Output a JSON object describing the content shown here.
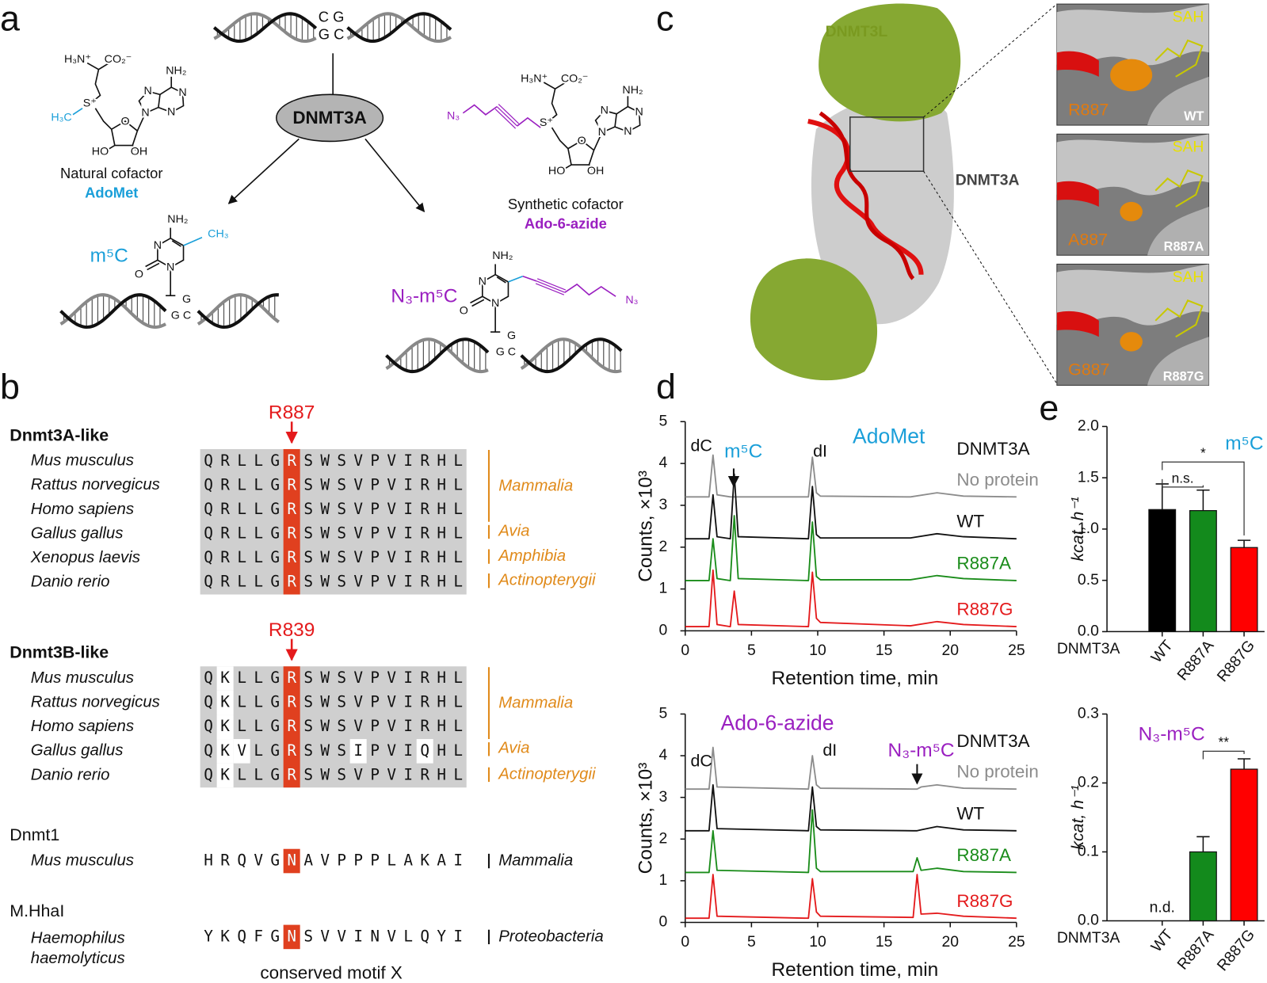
{
  "panel_labels": [
    "a",
    "b",
    "c",
    "d",
    "e"
  ],
  "panel_a": {
    "dna_top": [
      "C G",
      "G C"
    ],
    "enzyme": "DNMT3A",
    "natural": {
      "caption": "Natural cofactor",
      "name": "AdoMet"
    },
    "synthetic": {
      "caption": "Synthetic cofactor",
      "name": "Ado-6-azide"
    },
    "products": [
      "m⁵C",
      "N₃-m⁵C"
    ],
    "atoms": [
      "H₃N⁺",
      "CO₂⁻",
      "NH₂",
      "N",
      "S⁺",
      "H₃C",
      "O",
      "HO",
      "OH",
      "N₃",
      "CH₃",
      "G",
      "G C"
    ]
  },
  "panel_b": {
    "groups": [
      {
        "title": "Dnmt3A-like",
        "residue": "R887",
        "rows": [
          {
            "species": "Mus musculus",
            "sequence": "QRLLGRSWSVPVIRHL"
          },
          {
            "species": "Rattus norvegicus",
            "sequence": "QRLLGRSWSVPVIRHL"
          },
          {
            "species": "Homo sapiens",
            "sequence": "QRLLGRSWSVPVIRHL"
          },
          {
            "species": "Gallus gallus",
            "sequence": "QRLLGRSWSVPVIRHL"
          },
          {
            "species": "Xenopus laevis",
            "sequence": "QRLLGRSWSVPVIRHL"
          },
          {
            "species": "Danio rerio",
            "sequence": "QRLLGRSWSVPVIRHL"
          }
        ],
        "clades": [
          "Mammalia",
          "Avia",
          "Amphibia",
          "Actinopterygii"
        ]
      },
      {
        "title": "Dnmt3B-like",
        "residue": "R839",
        "rows": [
          {
            "species": "Mus musculus",
            "sequence": "QKLLGRSWSVPVIRHL"
          },
          {
            "species": "Rattus norvegicus",
            "sequence": "QKLLGRSWSVPVIRHL"
          },
          {
            "species": "Homo sapiens",
            "sequence": "QKLLGRSWSVPVIRHL"
          },
          {
            "species": "Gallus gallus",
            "sequence": "QKVLGRSWSIPVIQHL"
          },
          {
            "species": "Danio rerio",
            "sequence": "QKLLGRSWSVPVIRHL"
          }
        ],
        "clades": [
          "Mammalia",
          "Avia",
          "Actinopterygii"
        ]
      },
      {
        "title": "Dnmt1",
        "rows": [
          {
            "species": "Mus musculus",
            "sequence": "HRQVGNAVPPPLAKAI"
          }
        ],
        "clades": [
          "Mammalia"
        ]
      },
      {
        "title": "M.HhaI",
        "rows": [
          {
            "species": [
              "Haemophilus",
              "haemolyticus"
            ],
            "sequence": "YKQFGNSVVINVLQYI"
          }
        ],
        "clades": [
          "Proteobacteria"
        ]
      }
    ],
    "footer": "conserved motif X"
  },
  "panel_c": {
    "labels": [
      "DNMT3L",
      "DNMT3A"
    ],
    "insets": [
      {
        "ligand": "SAH",
        "residue": "R887",
        "variant": "WT"
      },
      {
        "ligand": "SAH",
        "residue": "A887",
        "variant": "R887A"
      },
      {
        "ligand": "SAH",
        "residue": "G887",
        "variant": "R887G"
      }
    ]
  },
  "chart_data": [
    {
      "type": "line",
      "title": "AdoMet",
      "title_color": "#1a9fd9",
      "legend_title": "DNMT3A",
      "xlabel": "Retention time, min",
      "ylabel": "Counts, ×10³",
      "annotations": [
        {
          "text": "dC"
        },
        {
          "text": "m⁵C",
          "color": "#1a9fd9"
        },
        {
          "text": "dI"
        }
      ],
      "x": [
        0,
        1.8,
        2.1,
        2.4,
        3.4,
        3.7,
        4.0,
        9.3,
        9.6,
        9.9,
        10.2,
        17,
        19,
        21,
        25
      ],
      "series": [
        {
          "name": "No protein",
          "color": "#8c8c8c",
          "values": [
            3.2,
            3.2,
            4.2,
            3.25,
            3.2,
            3.2,
            3.2,
            3.2,
            4.15,
            3.3,
            3.22,
            3.2,
            3.3,
            3.22,
            3.2
          ]
        },
        {
          "name": "WT",
          "color": "#111111",
          "values": [
            2.2,
            2.2,
            3.25,
            2.25,
            2.2,
            3.75,
            2.25,
            2.2,
            3.45,
            2.3,
            2.22,
            2.22,
            2.32,
            2.25,
            2.2
          ]
        },
        {
          "name": "R887A",
          "color": "#1a8c1a",
          "values": [
            1.2,
            1.2,
            2.2,
            1.25,
            1.2,
            2.75,
            1.25,
            1.2,
            2.6,
            1.3,
            1.22,
            1.22,
            1.32,
            1.25,
            1.2
          ]
        },
        {
          "name": "R887G",
          "color": "#e41a1c",
          "values": [
            0.1,
            0.1,
            1.45,
            0.15,
            0.1,
            0.95,
            0.15,
            0.1,
            1.4,
            0.3,
            0.2,
            0.12,
            0.22,
            0.15,
            0.1
          ]
        }
      ],
      "xlim": [
        0,
        25
      ],
      "ylim": [
        0,
        5
      ],
      "xticks": [
        0,
        5,
        10,
        15,
        20,
        25
      ],
      "yticks": [
        0,
        1,
        2,
        3,
        4,
        5
      ]
    },
    {
      "type": "line",
      "title": "Ado-6-azide",
      "title_color": "#9a1fc0",
      "legend_title": "DNMT3A",
      "xlabel": "Retention time, min",
      "ylabel": "Counts, ×10³",
      "annotations": [
        {
          "text": "dC"
        },
        {
          "text": "dI"
        },
        {
          "text": "N₃-m⁵C",
          "color": "#9a1fc0"
        }
      ],
      "x": [
        0,
        1.8,
        2.1,
        2.4,
        9.3,
        9.6,
        9.9,
        10.2,
        17.2,
        17.5,
        17.8,
        19,
        21,
        25
      ],
      "series": [
        {
          "name": "No protein",
          "color": "#8c8c8c",
          "values": [
            3.2,
            3.2,
            4.2,
            3.25,
            3.2,
            4.0,
            3.3,
            3.22,
            3.2,
            3.2,
            3.25,
            3.3,
            3.22,
            3.2
          ]
        },
        {
          "name": "WT",
          "color": "#111111",
          "values": [
            2.2,
            2.2,
            3.3,
            2.25,
            2.2,
            3.25,
            2.3,
            2.22,
            2.2,
            2.2,
            2.22,
            2.3,
            2.22,
            2.2
          ]
        },
        {
          "name": "R887A",
          "color": "#1a8c1a",
          "values": [
            1.2,
            1.2,
            2.2,
            1.25,
            1.2,
            2.7,
            1.3,
            1.22,
            1.22,
            1.55,
            1.25,
            1.3,
            1.22,
            1.2
          ]
        },
        {
          "name": "R887G",
          "color": "#e41a1c",
          "values": [
            0.1,
            0.1,
            1.15,
            0.15,
            0.1,
            1.05,
            0.25,
            0.15,
            0.12,
            1.15,
            0.2,
            0.22,
            0.15,
            0.1
          ]
        }
      ],
      "xlim": [
        0,
        25
      ],
      "ylim": [
        0,
        5
      ],
      "xticks": [
        0,
        5,
        10,
        15,
        20,
        25
      ],
      "yticks": [
        0,
        1,
        2,
        3,
        4,
        5
      ]
    },
    {
      "type": "bar",
      "categories": [
        "WT",
        "R887A",
        "R887G"
      ],
      "xlabel": "DNMT3A",
      "ylabel": "kcat, h⁻¹",
      "annotation": {
        "text": "m⁵C",
        "color": "#1a9fd9"
      },
      "values": [
        1.19,
        1.18,
        0.82
      ],
      "errors": [
        0.25,
        0.2,
        0.07
      ],
      "colors": [
        "#000000",
        "#138a1c",
        "#ff0000"
      ],
      "ylim": [
        0,
        2
      ],
      "yticks": [
        {
          "value": 0,
          "label": "0.0"
        },
        0.5,
        {
          "value": 1,
          "label": "1.0"
        },
        1.5,
        {
          "value": 2,
          "label": "2.0"
        }
      ],
      "significance": [
        {
          "label": "n.s.",
          "between": [
            0,
            1
          ]
        },
        {
          "label": "*",
          "between": [
            0,
            2
          ]
        }
      ]
    },
    {
      "type": "bar",
      "categories": [
        "WT",
        "R887A",
        "R887G"
      ],
      "xlabel": "DNMT3A",
      "ylabel": "kcat, h⁻¹",
      "annotation": {
        "text": "N₃-m⁵C",
        "color": "#9a1fc0"
      },
      "values": [
        null,
        0.1,
        0.22
      ],
      "errors": [
        null,
        0.022,
        0.015
      ],
      "value_labels": [
        "n.d.",
        null,
        null
      ],
      "colors": [
        "#000000",
        "#138a1c",
        "#ff0000"
      ],
      "ylim": [
        0,
        0.3
      ],
      "yticks": [
        {
          "value": 0,
          "label": "0.0"
        },
        0.1,
        0.2,
        0.3
      ],
      "significance": [
        {
          "label": "**",
          "between": [
            1,
            2
          ]
        }
      ]
    }
  ]
}
